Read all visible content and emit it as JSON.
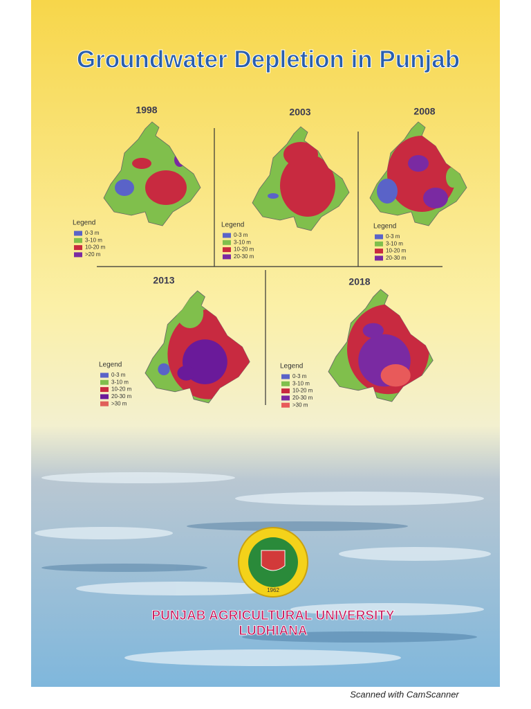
{
  "title": "Groundwater Depletion in Punjab",
  "maps": [
    {
      "year": "1998",
      "legend_title": "Legend",
      "legend": [
        {
          "label": "0-3 m",
          "color": "#5a63c8"
        },
        {
          "label": "3-10 m",
          "color": "#80bf4c"
        },
        {
          "label": "10-20 m",
          "color": "#c82a40"
        },
        {
          "label": ">20 m",
          "color": "#7a2aa2"
        }
      ]
    },
    {
      "year": "2003",
      "legend_title": "Legend",
      "legend": [
        {
          "label": "0-3 m",
          "color": "#5a63c8"
        },
        {
          "label": "3-10 m",
          "color": "#80bf4c"
        },
        {
          "label": "10-20 m",
          "color": "#c82a40"
        },
        {
          "label": "20-30 m",
          "color": "#7a2aa2"
        }
      ]
    },
    {
      "year": "2008",
      "legend_title": "Legend",
      "legend": [
        {
          "label": "0-3 m",
          "color": "#5a63c8"
        },
        {
          "label": "3-10 m",
          "color": "#80bf4c"
        },
        {
          "label": "10-20 m",
          "color": "#c82a40"
        },
        {
          "label": "20-30 m",
          "color": "#7a2aa2"
        }
      ]
    },
    {
      "year": "2013",
      "legend_title": "Legend",
      "legend": [
        {
          "label": "0-3 m",
          "color": "#5a63c8"
        },
        {
          "label": "3-10 m",
          "color": "#80bf4c"
        },
        {
          "label": "10-20 m",
          "color": "#c82a40"
        },
        {
          "label": "20-30 m",
          "color": "#6a1a9a"
        },
        {
          "label": ">30 m",
          "color": "#e0605a"
        }
      ]
    },
    {
      "year": "2018",
      "legend_title": "Legend",
      "legend": [
        {
          "label": "0-3 m",
          "color": "#5a63c8"
        },
        {
          "label": "3-10 m",
          "color": "#80bf4c"
        },
        {
          "label": "10-20 m",
          "color": "#c82a40"
        },
        {
          "label": "20-30 m",
          "color": "#7a2aa2"
        },
        {
          "label": ">30 m",
          "color": "#e85a5a"
        }
      ]
    }
  ],
  "logo_year": "1962",
  "university": [
    "PUNJAB AGRICULTURAL UNIVERSITY",
    "LUDHIANA"
  ],
  "footer": "Scanned with CamScanner"
}
